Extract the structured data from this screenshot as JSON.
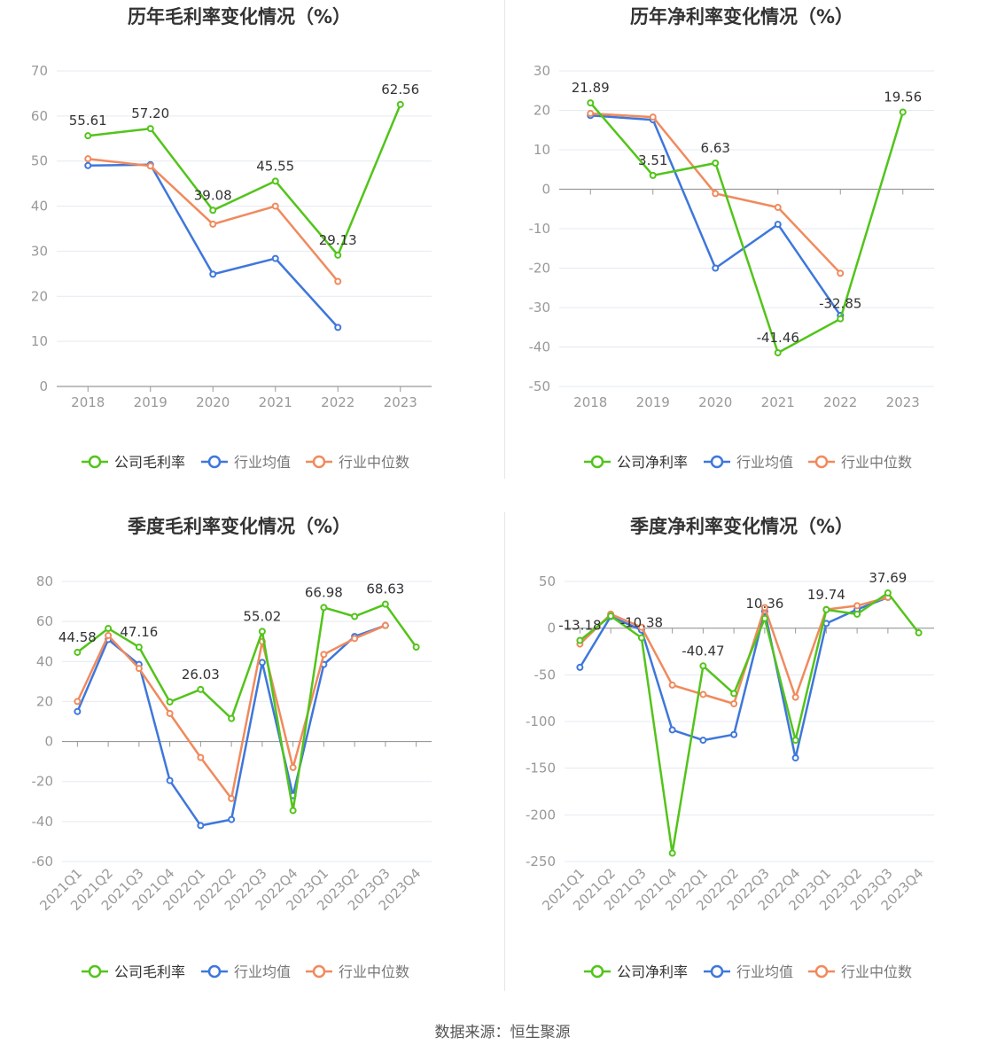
{
  "source_label": "数据来源：恒生聚源",
  "legend": {
    "gross": [
      "公司毛利率",
      "行业均值",
      "行业中位数"
    ],
    "net": [
      "公司净利率",
      "行业均值",
      "行业中位数"
    ]
  },
  "colors": {
    "company": "#52c41a",
    "avg": "#3e77db",
    "median": "#f08a5d",
    "grid": "#e6e9f0",
    "axis": "#999999",
    "text": "#333333"
  },
  "chart_data": [
    {
      "type": "line",
      "title": "历年毛利率变化情况（%）",
      "categories": [
        "2018",
        "2019",
        "2020",
        "2021",
        "2022",
        "2023"
      ],
      "yticks": [
        0,
        10,
        20,
        30,
        40,
        50,
        60,
        70
      ],
      "ylim": [
        0,
        70
      ],
      "rotate_labels": false,
      "series": [
        {
          "name": "公司毛利率",
          "values": [
            55.61,
            57.2,
            39.08,
            45.55,
            29.13,
            62.56
          ],
          "labels": [
            "55.61",
            "57.20",
            "39.08",
            "45.55",
            "29.13",
            "62.56"
          ]
        },
        {
          "name": "行业均值",
          "values": [
            49.0,
            49.2,
            24.9,
            28.4,
            13.1,
            null
          ]
        },
        {
          "name": "行业中位数",
          "values": [
            50.5,
            48.9,
            36.0,
            40.0,
            23.3,
            null
          ]
        }
      ]
    },
    {
      "type": "line",
      "title": "历年净利率变化情况（%）",
      "categories": [
        "2018",
        "2019",
        "2020",
        "2021",
        "2022",
        "2023"
      ],
      "yticks": [
        -50,
        -40,
        -30,
        -20,
        -10,
        0,
        10,
        20,
        30
      ],
      "ylim": [
        -50,
        30
      ],
      "rotate_labels": false,
      "series": [
        {
          "name": "公司净利率",
          "values": [
            21.89,
            3.51,
            6.63,
            -41.46,
            -32.85,
            19.56
          ],
          "labels": [
            "21.89",
            "3.51",
            "6.63",
            "-41.46",
            "-32.85",
            "19.56"
          ]
        },
        {
          "name": "行业均值",
          "values": [
            18.7,
            17.6,
            -20.0,
            -8.9,
            -32.0,
            null
          ]
        },
        {
          "name": "行业中位数",
          "values": [
            19.2,
            18.3,
            -1.1,
            -4.6,
            -21.3,
            null
          ]
        }
      ]
    },
    {
      "type": "line",
      "title": "季度毛利率变化情况（%）",
      "categories": [
        "2021Q1",
        "2021Q2",
        "2021Q3",
        "2021Q4",
        "2022Q1",
        "2022Q2",
        "2022Q3",
        "2022Q4",
        "2023Q1",
        "2023Q2",
        "2023Q3",
        "2023Q4"
      ],
      "yticks": [
        -60,
        -40,
        -20,
        0,
        20,
        40,
        60,
        80
      ],
      "ylim": [
        -60,
        80
      ],
      "rotate_labels": true,
      "series": [
        {
          "name": "公司毛利率",
          "values": [
            44.58,
            56.5,
            47.16,
            19.8,
            26.03,
            11.5,
            55.02,
            -34.5,
            66.98,
            62.5,
            68.63,
            47.2
          ],
          "labels": [
            "44.58",
            "",
            "47.16",
            "",
            "26.03",
            "",
            "55.02",
            "",
            "66.98",
            "",
            "68.63",
            ""
          ]
        },
        {
          "name": "行业均值",
          "values": [
            15.0,
            51.0,
            38.5,
            -19.5,
            -42.0,
            -39.0,
            39.5,
            -27.0,
            38.5,
            52.5,
            58.0,
            null
          ]
        },
        {
          "name": "行业中位数",
          "values": [
            20.0,
            53.0,
            36.5,
            14.0,
            -8.0,
            -28.5,
            50.0,
            -13.0,
            43.5,
            51.5,
            58.0,
            null
          ]
        }
      ]
    },
    {
      "type": "line",
      "title": "季度净利率变化情况（%）",
      "categories": [
        "2021Q1",
        "2021Q2",
        "2021Q3",
        "2021Q4",
        "2022Q1",
        "2022Q2",
        "2022Q3",
        "2022Q4",
        "2023Q1",
        "2023Q2",
        "2023Q3",
        "2023Q4"
      ],
      "yticks": [
        -250,
        -200,
        -150,
        -100,
        -50,
        0,
        50
      ],
      "ylim": [
        -250,
        50
      ],
      "rotate_labels": true,
      "series": [
        {
          "name": "公司净利率",
          "values": [
            -13.18,
            13.0,
            -10.38,
            -241.0,
            -40.47,
            -70.0,
            10.36,
            -120.0,
            19.74,
            15.0,
            37.69,
            -5.0
          ],
          "labels": [
            "-13.18",
            "",
            "-10.38",
            "",
            "-40.47",
            "",
            "10.36",
            "",
            "19.74",
            "",
            "37.69",
            ""
          ]
        },
        {
          "name": "行业均值",
          "values": [
            -42.0,
            12.5,
            -2.0,
            -109.0,
            -120.0,
            -114.0,
            18.0,
            -139.0,
            5.0,
            20.0,
            33.0,
            null
          ]
        },
        {
          "name": "行业中位数",
          "values": [
            -17.0,
            15.0,
            1.0,
            -61.0,
            -71.0,
            -81.0,
            22.0,
            -74.0,
            20.0,
            24.0,
            33.0,
            null
          ]
        }
      ]
    }
  ]
}
